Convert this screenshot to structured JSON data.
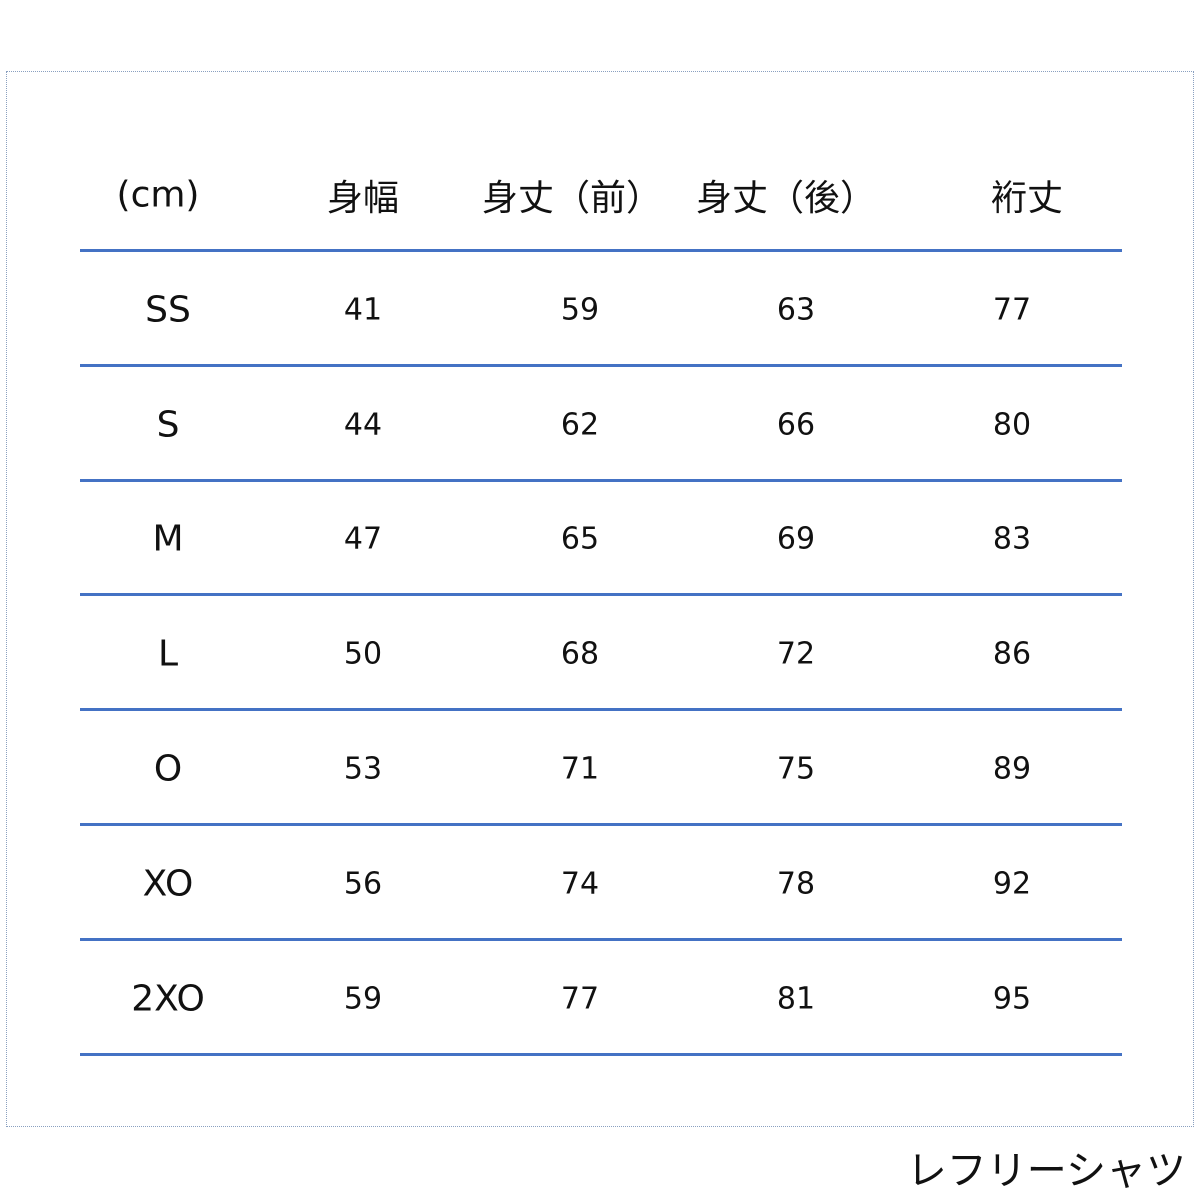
{
  "table": {
    "headers": [
      "(cm)",
      "身幅",
      "身丈（前）",
      "身丈（後）",
      "裄丈"
    ],
    "rows": [
      [
        "SS",
        "41",
        "59",
        "63",
        "77"
      ],
      [
        "S",
        "44",
        "62",
        "66",
        "80"
      ],
      [
        "M",
        "47",
        "65",
        "69",
        "83"
      ],
      [
        "L",
        "50",
        "68",
        "72",
        "86"
      ],
      [
        "O",
        "53",
        "71",
        "75",
        "89"
      ],
      [
        "XO",
        "56",
        "74",
        "78",
        "92"
      ],
      [
        "2XO",
        "59",
        "77",
        "81",
        "95"
      ]
    ]
  },
  "footer": "レフリーシャツ",
  "colors": {
    "rule": "#4472c4"
  }
}
